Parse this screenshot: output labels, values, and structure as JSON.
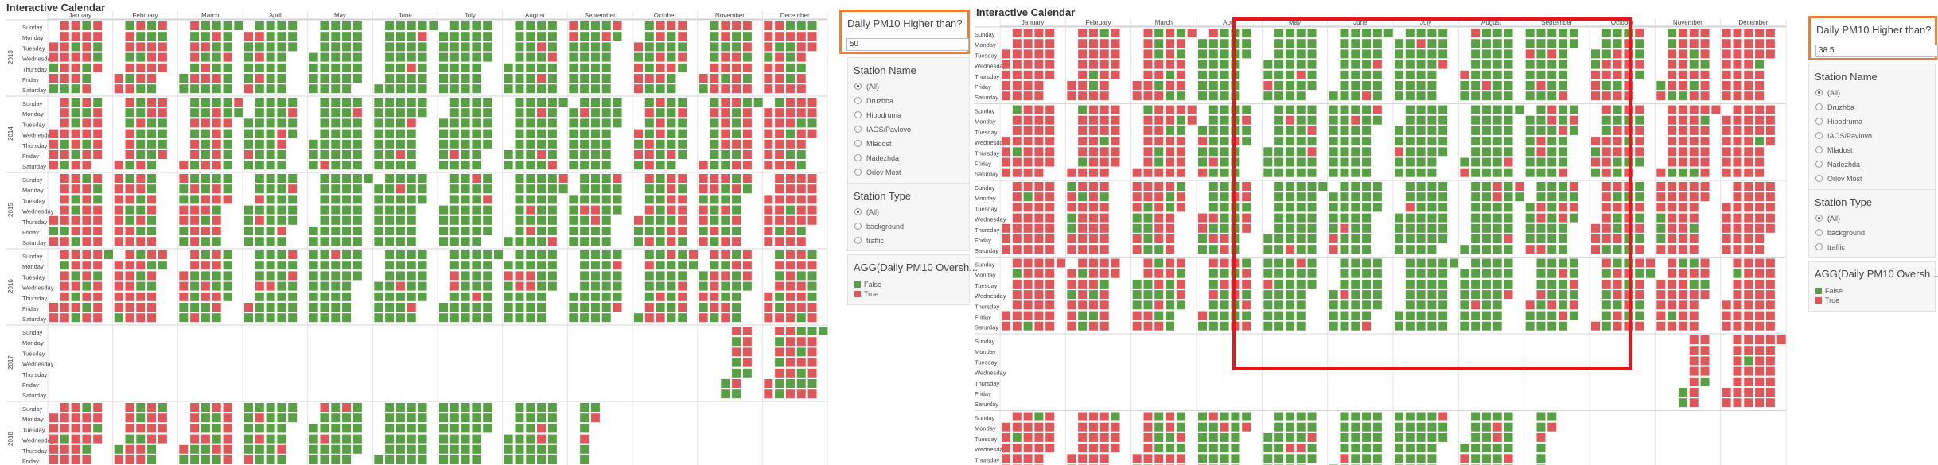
{
  "colors": {
    "false": "#57a043",
    "true": "#e15759",
    "accent": "#ef7d32",
    "highlight": "#e8151b"
  },
  "panels": [
    {
      "title": "Interactive Calendar",
      "parameter": {
        "label": "Daily PM10 Higher than?",
        "value": "50"
      },
      "station_name": {
        "label": "Station Name",
        "options": [
          "(All)",
          "Druzhba",
          "Hipodruma",
          "IAOS/Pavlovo",
          "Mladost",
          "Nadezhda",
          "Orlov Most"
        ],
        "selected": 0
      },
      "station_type": {
        "label": "Station Type",
        "options": [
          "(All)",
          "background",
          "traffic"
        ],
        "selected": 0
      },
      "legend": {
        "label": "AGG(Daily PM10 Oversh...",
        "items": [
          "False",
          "True"
        ]
      },
      "red_bias": 1.0,
      "highlight": false
    },
    {
      "title": "Interactive Calendar",
      "parameter": {
        "label": "Daily PM10 Higher than?",
        "value": "38.5"
      },
      "station_name": {
        "label": "Station Name",
        "options": [
          "(All)",
          "Druzhba",
          "Hipodruma",
          "IAOS/Pavlovo",
          "Mladost",
          "Nadezhda",
          "Orlov Most"
        ],
        "selected": 0
      },
      "station_type": {
        "label": "Station Type",
        "options": [
          "(All)",
          "background",
          "traffic"
        ],
        "selected": 0
      },
      "legend": {
        "label": "AGG(Daily PM10 Oversh...",
        "items": [
          "False",
          "True"
        ]
      },
      "red_bias": 1.45,
      "highlight": true
    }
  ],
  "calendar": {
    "months": [
      "January",
      "February",
      "March",
      "April",
      "May",
      "June",
      "July",
      "August",
      "September",
      "October",
      "November",
      "December"
    ],
    "weekdays": [
      "Sunday",
      "Monday",
      "Tuesday",
      "Wednesday",
      "Thursday",
      "Friday",
      "Saturday"
    ],
    "years": [
      {
        "label": "2013",
        "active_months": [
          1,
          2,
          3,
          4,
          5,
          6,
          7,
          8,
          9,
          10,
          11,
          12
        ]
      },
      {
        "label": "2014",
        "active_months": [
          1,
          2,
          3,
          4,
          5,
          6,
          7,
          8,
          9,
          10,
          11,
          12
        ]
      },
      {
        "label": "2015",
        "active_months": [
          1,
          2,
          3,
          4,
          5,
          6,
          7,
          8,
          9,
          10,
          11,
          12
        ]
      },
      {
        "label": "2016",
        "active_months": [
          1,
          2,
          3,
          4,
          5,
          6,
          7,
          8,
          9,
          10,
          11,
          12
        ]
      },
      {
        "label": "2017",
        "active_months": [
          11,
          12
        ],
        "start_day": {
          "11": 17
        }
      },
      {
        "label": "2018",
        "active_months": [
          1,
          2,
          3,
          4,
          5,
          6,
          7,
          8,
          9
        ],
        "end_day": {
          "9": 10
        }
      }
    ],
    "monthly_exceedance_rate": [
      0.72,
      0.62,
      0.42,
      0.12,
      0.05,
      0.05,
      0.04,
      0.06,
      0.12,
      0.36,
      0.55,
      0.7
    ]
  }
}
